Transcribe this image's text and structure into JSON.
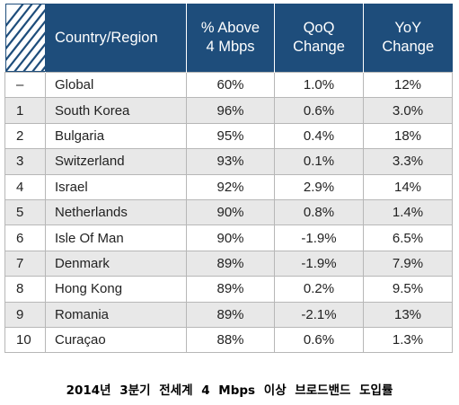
{
  "table": {
    "headers": {
      "country": "Country/Region",
      "above4": [
        "% Above",
        "4 Mbps"
      ],
      "qoq": [
        "QoQ",
        "Change"
      ],
      "yoy": [
        "YoY",
        "Change"
      ]
    },
    "rows": [
      {
        "rank": "–",
        "country": "Global",
        "above4": "60%",
        "qoq": "1.0%",
        "yoy": "12%"
      },
      {
        "rank": "1",
        "country": "South Korea",
        "above4": "96%",
        "qoq": "0.6%",
        "yoy": "3.0%"
      },
      {
        "rank": "2",
        "country": "Bulgaria",
        "above4": "95%",
        "qoq": "0.4%",
        "yoy": "18%"
      },
      {
        "rank": "3",
        "country": "Switzerland",
        "above4": "93%",
        "qoq": "0.1%",
        "yoy": "3.3%"
      },
      {
        "rank": "4",
        "country": "Israel",
        "above4": "92%",
        "qoq": "2.9%",
        "yoy": "14%"
      },
      {
        "rank": "5",
        "country": "Netherlands",
        "above4": "90%",
        "qoq": "0.8%",
        "yoy": "1.4%"
      },
      {
        "rank": "6",
        "country": "Isle Of Man",
        "above4": "90%",
        "qoq": "-1.9%",
        "yoy": "6.5%"
      },
      {
        "rank": "7",
        "country": "Denmark",
        "above4": "89%",
        "qoq": "-1.9%",
        "yoy": "7.9%"
      },
      {
        "rank": "8",
        "country": "Hong Kong",
        "above4": "89%",
        "qoq": "0.2%",
        "yoy": "9.5%"
      },
      {
        "rank": "9",
        "country": "Romania",
        "above4": "89%",
        "qoq": "-2.1%",
        "yoy": "13%"
      },
      {
        "rank": "10",
        "country": "Curaçao",
        "above4": "88%",
        "qoq": "0.6%",
        "yoy": "1.3%"
      }
    ]
  },
  "caption": "2014년 3분기 전세계 4 Mbps 이상 브로드밴드 도입률",
  "colors": {
    "header_bg": "#1e4d7b",
    "stripe_bg": "#e8e8e8",
    "border": "#b7b7b7"
  }
}
